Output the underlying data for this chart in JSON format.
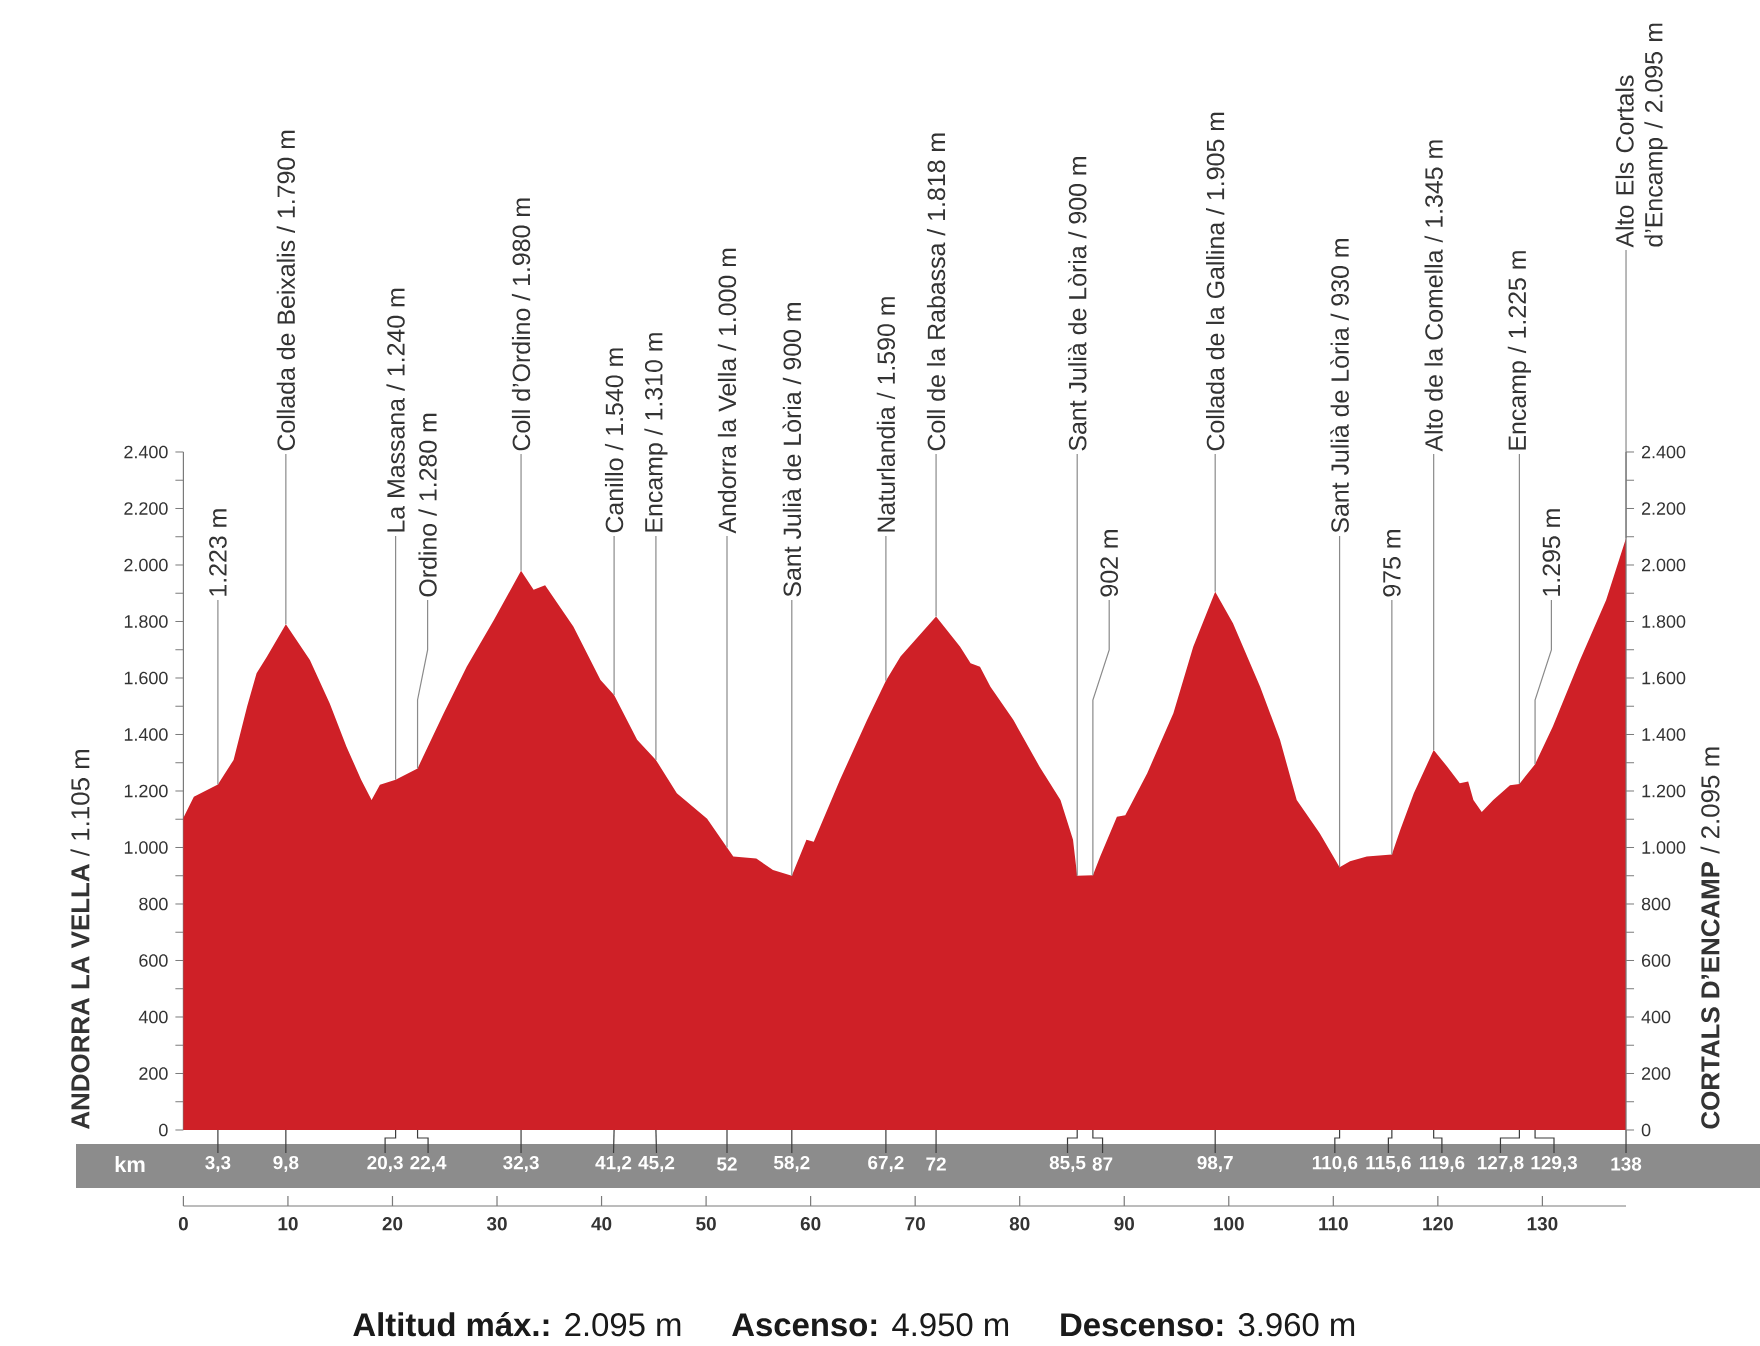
{
  "chart_data": {
    "type": "area",
    "color": "#cf2027",
    "x": [
      0,
      1.0,
      3.3,
      4.8,
      6.1,
      7.0,
      8.0,
      9.8,
      12.1,
      14.0,
      15.6,
      17.0,
      18.0,
      18.8,
      20.3,
      22.4,
      24.9,
      27.1,
      29.7,
      32.3,
      33.5,
      34.6,
      37.3,
      39.9,
      41.2,
      43.4,
      45.2,
      47.2,
      50.1,
      52,
      52.6,
      54.8,
      56.4,
      58.2,
      59.6,
      60.3,
      62.8,
      65.4,
      67.2,
      68.6,
      72,
      74.3,
      75.3,
      76.2,
      77.2,
      79.4,
      81.9,
      83.9,
      85.1,
      85.5,
      87,
      87.7,
      89.3,
      90.1,
      92.2,
      94.7,
      96.6,
      98.7,
      100.4,
      103.0,
      104.9,
      106.5,
      108.7,
      110.6,
      111.6,
      113.2,
      115.6,
      116.4,
      117.7,
      119.6,
      120.9,
      122.1,
      122.9,
      123.4,
      124.2,
      125.3,
      126.9,
      127.8,
      129.3,
      131.0,
      133.6,
      136.1,
      138
    ],
    "values": [
      1105,
      1180,
      1223,
      1310,
      1500,
      1617,
      1676,
      1790,
      1664,
      1510,
      1357,
      1240,
      1168,
      1222,
      1240,
      1280,
      1475,
      1640,
      1805,
      1980,
      1912,
      1928,
      1782,
      1593,
      1540,
      1381,
      1310,
      1192,
      1102,
      1000,
      968,
      961,
      920,
      900,
      1027,
      1020,
      1239,
      1451,
      1590,
      1676,
      1818,
      1711,
      1652,
      1640,
      1569,
      1451,
      1286,
      1168,
      1027,
      900,
      902,
      968,
      1109,
      1114,
      1263,
      1475,
      1711,
      1905,
      1794,
      1569,
      1381,
      1168,
      1050,
      930,
      951,
      968,
      975,
      1062,
      1192,
      1345,
      1286,
      1227,
      1234,
      1168,
      1126,
      1168,
      1220,
      1225,
      1295,
      1428,
      1664,
      1876,
      2095
    ],
    "xlim": [
      0,
      138
    ],
    "xticks": [
      0,
      10,
      20,
      30,
      40,
      50,
      60,
      70,
      80,
      90,
      100,
      110,
      120,
      130
    ],
    "ylim": [
      0,
      2400
    ],
    "yticks": [
      0,
      {
        "value": 100,
        "label": null
      },
      200,
      {
        "value": 300,
        "label": null
      },
      400,
      {
        "value": 500,
        "label": null
      },
      600,
      {
        "value": 700,
        "label": null
      },
      800,
      {
        "value": 900,
        "label": null
      },
      {
        "value": 1000,
        "label": "1.000"
      },
      {
        "value": 1100,
        "label": null
      },
      {
        "value": 1200,
        "label": "1.200"
      },
      {
        "value": 1300,
        "label": null
      },
      {
        "value": 1400,
        "label": "1.400"
      },
      {
        "value": 1500,
        "label": null
      },
      {
        "value": 1600,
        "label": "1.600"
      },
      {
        "value": 1700,
        "label": null
      },
      {
        "value": 1800,
        "label": "1.800"
      },
      {
        "value": 1900,
        "label": null
      },
      {
        "value": 2000,
        "label": "2.000"
      },
      {
        "value": 2100,
        "label": null
      },
      {
        "value": 2200,
        "label": "2.200"
      },
      {
        "value": 2300,
        "label": null
      },
      {
        "value": 2400,
        "label": "2.400"
      }
    ],
    "y2lim": [
      0,
      2400
    ],
    "y2ticks": [
      0,
      {
        "value": 100,
        "label": null
      },
      200,
      {
        "value": 300,
        "label": null
      },
      400,
      {
        "value": 500,
        "label": null
      },
      600,
      {
        "value": 700,
        "label": null
      },
      800,
      {
        "value": 900,
        "label": null
      },
      {
        "value": 1000,
        "label": "1.000"
      },
      {
        "value": 1100,
        "label": null
      },
      {
        "value": 1200,
        "label": "1.200"
      },
      {
        "value": 1300,
        "label": null
      },
      {
        "value": 1400,
        "label": "1.400"
      },
      {
        "value": 1500,
        "label": null
      },
      {
        "value": 1600,
        "label": "1.600"
      },
      {
        "value": 1700,
        "label": null
      },
      {
        "value": 1800,
        "label": "1.800"
      },
      {
        "value": 1900,
        "label": null
      },
      {
        "value": 2000,
        "label": "2.000"
      },
      {
        "value": 2100,
        "label": null
      },
      {
        "value": 2200,
        "label": "2.200"
      },
      {
        "value": 2300,
        "label": null
      },
      {
        "value": 2400,
        "label": "2.400"
      }
    ],
    "ylabel": "**ANDORRA LA VELLA** / 1.105 m",
    "y2label": "**CORTALS D’ENCAMP** / 2.095 m",
    "annotations": [
      {
        "text": "1.223 m",
        "x": 3.3,
        "y": 1223
      },
      {
        "text": "Collada de Beixalis / 1.790 m",
        "x": 9.8,
        "y": 1790
      },
      {
        "text": "La Massana / 1.240 m",
        "x": 20.3,
        "y": 1240
      },
      {
        "text": "Ordino / 1.280 m",
        "x": 22.4,
        "y": 1280
      },
      {
        "text": "Coll d’Ordino / 1.980 m",
        "x": 32.3,
        "y": 1980
      },
      {
        "text": "Canillo / 1.540 m",
        "x": 41.2,
        "y": 1540
      },
      {
        "text": "Encamp / 1.310 m",
        "x": 45.2,
        "y": 1310
      },
      {
        "text": "Andorra la Vella / 1.000 m",
        "x": 52,
        "y": 1000
      },
      {
        "text": "Sant Julià de Lòria / 900 m",
        "x": 58.2,
        "y": 900
      },
      {
        "text": "Naturlandia / 1.590 m",
        "x": 67.2,
        "y": 1590
      },
      {
        "text": "Coll de la Rabassa / 1.818 m",
        "x": 72,
        "y": 1818
      },
      {
        "text": "Sant Julià de Lòria / 900 m",
        "x": 85.5,
        "y": 900
      },
      {
        "text": "902 m",
        "x": 87,
        "y": 902
      },
      {
        "text": "Collada de la Gallina / 1.905 m",
        "x": 98.7,
        "y": 1905
      },
      {
        "text": "Sant Julià de Lòria / 930 m",
        "x": 110.6,
        "y": 930
      },
      {
        "text": "975 m",
        "x": 115.6,
        "y": 975
      },
      {
        "text": "Alto de la Comella / 1.345 m",
        "x": 119.6,
        "y": 1345
      },
      {
        "text": "Encamp / 1.225 m",
        "x": 127.8,
        "y": 1225
      },
      {
        "text": "1.295 m",
        "x": 129.3,
        "y": 1295
      },
      {
        "text": "Alto Els Cortals d’Encamp / 2.095 m",
        "x": 138,
        "y": 2095
      },
      {
        "text": "3,3",
        "x": 3.3,
        "y": 0
      },
      {
        "text": "9,8",
        "x": 9.8,
        "y": 0
      },
      {
        "text": "20,3",
        "x": 20.3,
        "y": 0
      },
      {
        "text": "22,4",
        "x": 22.4,
        "y": 0
      },
      {
        "text": "32,3",
        "x": 32.3,
        "y": 0
      },
      {
        "text": "41,2",
        "x": 41.2,
        "y": 0
      },
      {
        "text": "45,2",
        "x": 45.2,
        "y": 0
      },
      {
        "text": "52",
        "x": 52,
        "y": 0
      },
      {
        "text": "58,2",
        "x": 58.2,
        "y": 0
      },
      {
        "text": "67,2",
        "x": 67.2,
        "y": 0
      },
      {
        "text": "72",
        "x": 72,
        "y": 0
      },
      {
        "text": "85,5",
        "x": 85.5,
        "y": 0
      },
      {
        "text": "87",
        "x": 87,
        "y": 0
      },
      {
        "text": "98,7",
        "x": 98.7,
        "y": 0
      },
      {
        "text": "110,6",
        "x": 110.6,
        "y": 0
      },
      {
        "text": "115,6",
        "x": 115.6,
        "y": 0
      },
      {
        "text": "119,6",
        "x": 119.6,
        "y": 0
      },
      {
        "text": "127,8",
        "x": 127.8,
        "y": 0
      },
      {
        "text": "129,3",
        "x": 129.3,
        "y": 0
      },
      {
        "text": "138",
        "x": 138,
        "y": 0
      },
      "km",
      "**Altitud máx.:** 2.095 m",
      "**Ascenso:** 4.950 m",
      "**Descenso:** 3.960 m"
    ]
  }
}
